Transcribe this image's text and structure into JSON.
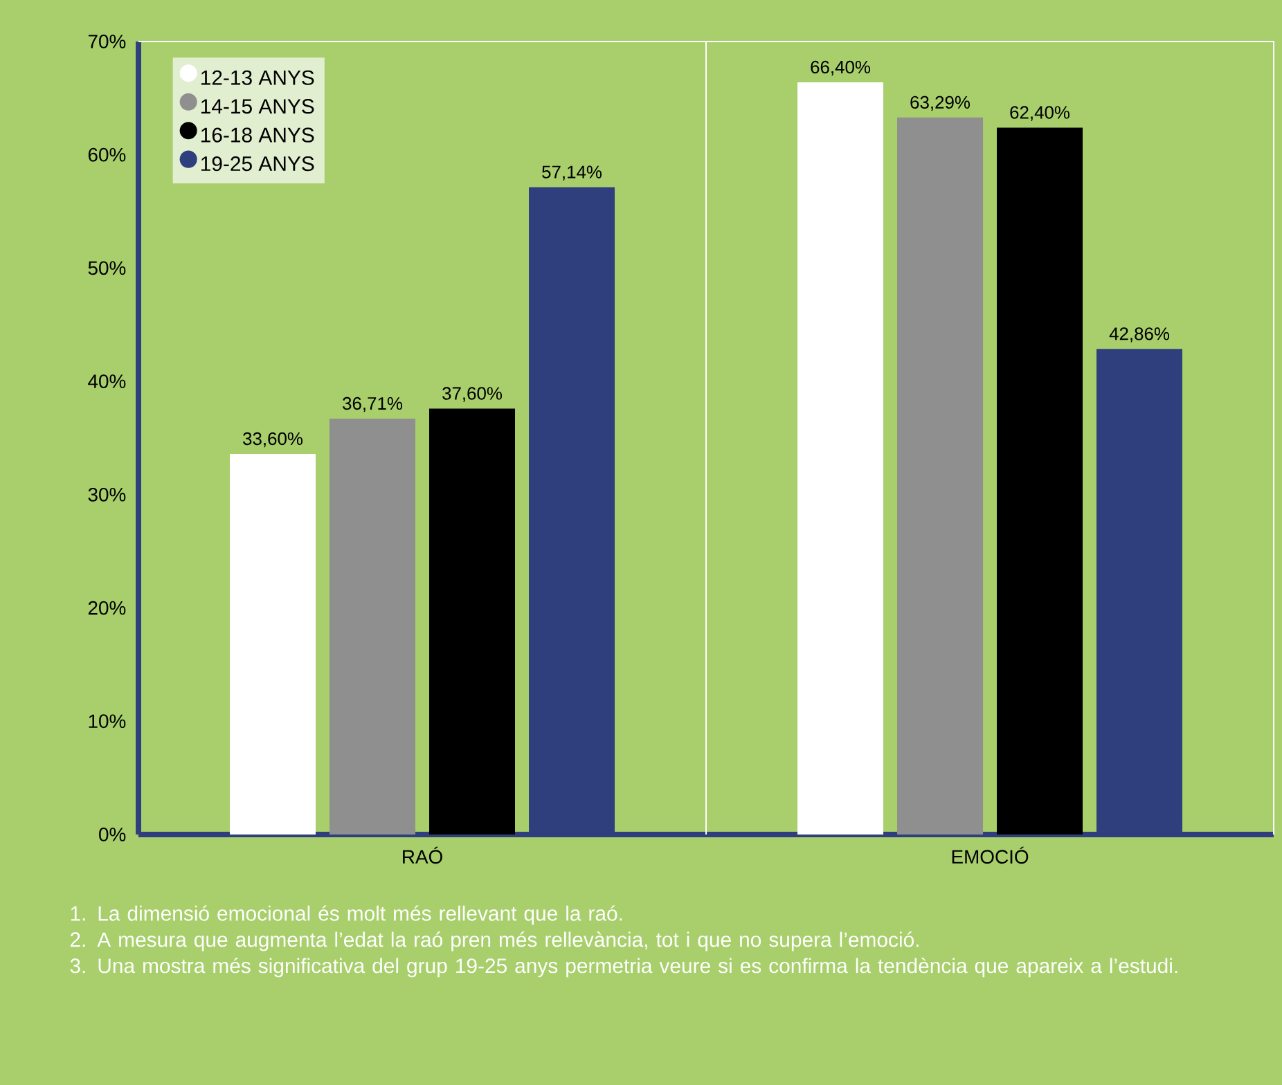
{
  "chart_data": {
    "type": "bar",
    "categories": [
      "RAÓ",
      "EMOCIÓ"
    ],
    "series": [
      {
        "name": "12-13 ANYS",
        "color": "#ffffff",
        "values": [
          33.6,
          66.4
        ],
        "value_labels": [
          "33,60%",
          "66,40%"
        ]
      },
      {
        "name": "14-15 ANYS",
        "color": "#8f8f8f",
        "values": [
          36.71,
          63.29
        ],
        "value_labels": [
          "36,71%",
          "63,29%"
        ]
      },
      {
        "name": "16-18 ANYS",
        "color": "#000000",
        "values": [
          37.6,
          62.4
        ],
        "value_labels": [
          "37,60%",
          "62,40%"
        ]
      },
      {
        "name": "19-25 ANYS",
        "color": "#2f3f7e",
        "values": [
          57.14,
          42.86
        ],
        "value_labels": [
          "57,14%",
          "42,86%"
        ]
      }
    ],
    "ylim": [
      0,
      70
    ],
    "yticks": [
      {
        "value": 0,
        "label": "0%"
      },
      {
        "value": 10,
        "label": "10%"
      },
      {
        "value": 20,
        "label": "20%"
      },
      {
        "value": 30,
        "label": "30%"
      },
      {
        "value": 40,
        "label": "40%"
      },
      {
        "value": 50,
        "label": "50%"
      },
      {
        "value": 60,
        "label": "60%"
      },
      {
        "value": 70,
        "label": "70%"
      }
    ],
    "legend": "top left",
    "annotations": [
      "1. La dimensió emocional és molt més rellevant que la raó.",
      "2. A mesura que augmenta l’edat la raó pren més rellevància, tot i que no supera l’emoció.",
      "3. Una mostra més significativa del grup 19-25 anys permetria veure si es confirma la tendència que apareix a l’estudi."
    ]
  }
}
